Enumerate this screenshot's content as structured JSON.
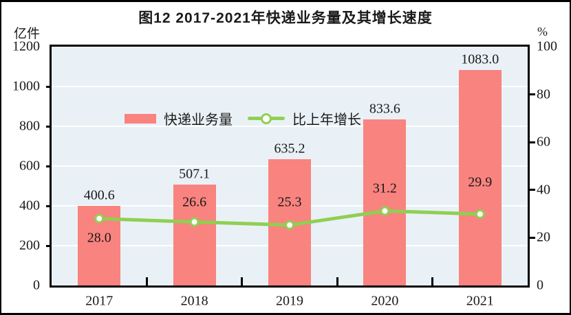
{
  "figure": {
    "title": "图12  2017-2021年快递业务量及其增长速度",
    "left_axis_unit": "亿件",
    "right_axis_unit": "%"
  },
  "legend": [
    {
      "label": "快递业务量",
      "type": "bar"
    },
    {
      "label": "比上年增长",
      "type": "line"
    }
  ],
  "colors": {
    "bar": "#f9837f",
    "line": "#90cf52",
    "marker_fill": "#ffffff",
    "plot_bg": "#e9f1f6",
    "gridline": "#ffffff",
    "text": "#1a1a1a",
    "border": "#000000"
  },
  "chart_data": {
    "type": "bar",
    "categories": [
      "2017",
      "2018",
      "2019",
      "2020",
      "2021"
    ],
    "series": [
      {
        "name": "快递业务量",
        "type": "bar",
        "axis": "left",
        "values": [
          400.6,
          507.1,
          635.2,
          833.6,
          1083.0
        ]
      },
      {
        "name": "比上年增长",
        "type": "line",
        "axis": "right",
        "values": [
          28.0,
          26.6,
          25.3,
          31.2,
          29.9
        ]
      }
    ],
    "title": "图12  2017-2021年快递业务量及其增长速度",
    "xlabel": "",
    "ylabel_left": "亿件",
    "ylabel_right": "%",
    "left_axis": {
      "min": 0,
      "max": 1200,
      "tick_step": 200
    },
    "right_axis": {
      "min": 0,
      "max": 100,
      "tick_step": 20
    },
    "grid": "horizontal-white-on-lightblue",
    "legend_position": "top-left-inside",
    "rate_label_dy": [
      28,
      -28,
      -33,
      -32,
      -46
    ]
  }
}
